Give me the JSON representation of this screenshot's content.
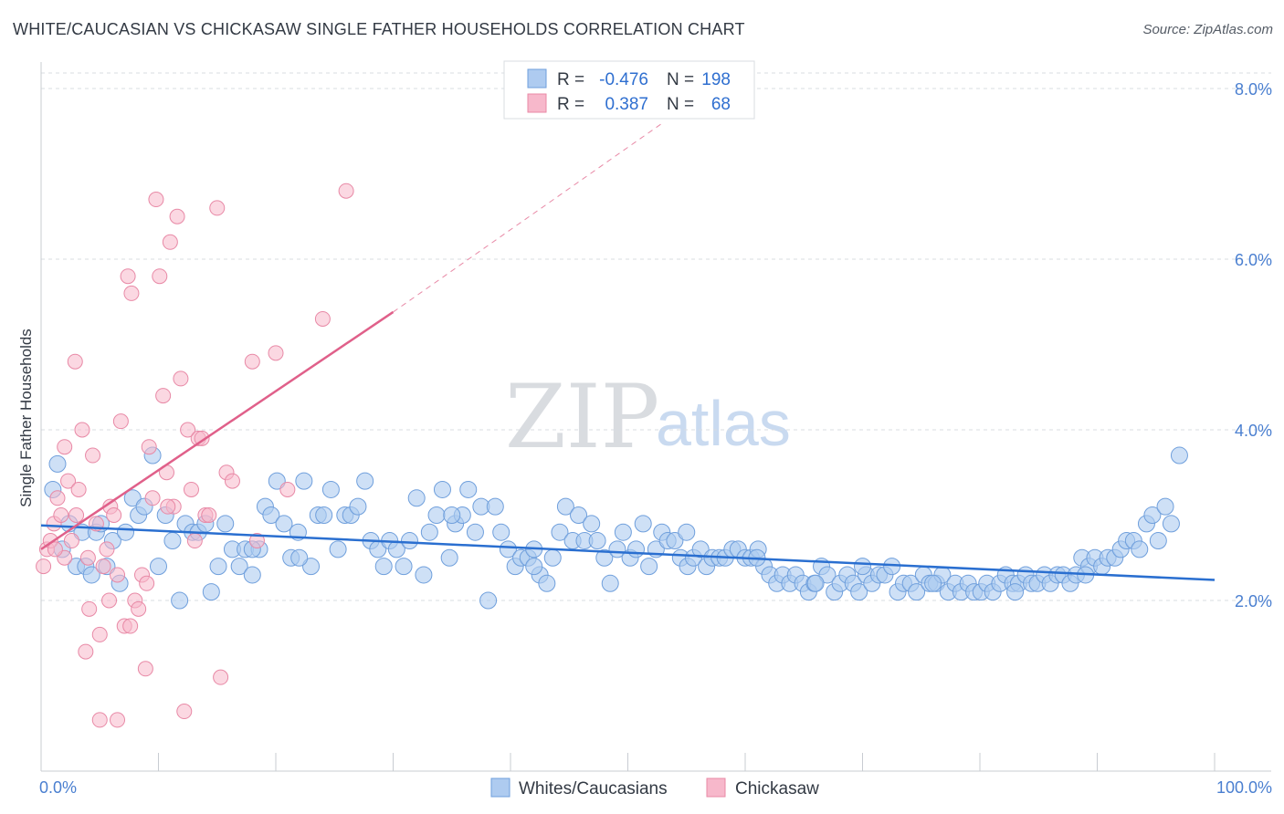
{
  "title": "WHITE/CAUCASIAN VS CHICKASAW SINGLE FATHER HOUSEHOLDS CORRELATION CHART",
  "source": "Source: ZipAtlas.com",
  "watermark": {
    "zip": "ZIP",
    "atlas": "atlas"
  },
  "colors": {
    "white_fill": "#aecbf0",
    "white_stroke": "#6f9fdc",
    "white_line": "#2a6fd0",
    "chick_fill": "#f7b8cb",
    "chick_stroke": "#e889a6",
    "chick_line": "#e0608a",
    "grid": "#d8dce2",
    "axis_text": "#4a7fd0"
  },
  "legend": {
    "rows": [
      {
        "r_label": "R =",
        "r_value": "-0.476",
        "n_label": "N =",
        "n_value": "198"
      },
      {
        "r_label": "R =",
        "r_value": "0.387",
        "n_label": "N =",
        "n_value": "68"
      }
    ]
  },
  "bottom_legend": [
    "Whites/Caucasians",
    "Chickasaw"
  ],
  "chart_data": {
    "type": "scatter",
    "xlabel": "",
    "ylabel": "Single Father Households",
    "xlim": [
      0,
      100
    ],
    "ylim": [
      0,
      8.0
    ],
    "x_tick_labels": [
      "0.0%",
      "100.0%"
    ],
    "y_ticks": [
      2.0,
      4.0,
      6.0,
      8.0
    ],
    "y_tick_labels": [
      "2.0%",
      "4.0%",
      "6.0%",
      "8.0%"
    ],
    "grid": true,
    "series": [
      {
        "name": "Whites/Caucasians",
        "trend": {
          "x0": 0,
          "y0": 2.88,
          "x1": 100,
          "y1": 2.24
        },
        "points": [
          [
            1.0,
            3.3
          ],
          [
            1.4,
            3.6
          ],
          [
            1.8,
            2.6
          ],
          [
            2.4,
            2.9
          ],
          [
            3.0,
            2.4
          ],
          [
            3.5,
            2.8
          ],
          [
            3.8,
            2.4
          ],
          [
            4.3,
            2.3
          ],
          [
            4.7,
            2.8
          ],
          [
            5.1,
            2.9
          ],
          [
            5.6,
            2.4
          ],
          [
            6.1,
            2.7
          ],
          [
            6.7,
            2.2
          ],
          [
            7.2,
            2.8
          ],
          [
            7.8,
            3.2
          ],
          [
            8.3,
            3.0
          ],
          [
            8.8,
            3.1
          ],
          [
            9.5,
            3.7
          ],
          [
            10.0,
            2.4
          ],
          [
            10.6,
            3.0
          ],
          [
            11.2,
            2.7
          ],
          [
            11.8,
            2.0
          ],
          [
            12.3,
            2.9
          ],
          [
            12.9,
            2.8
          ],
          [
            13.4,
            2.8
          ],
          [
            14.0,
            2.9
          ],
          [
            14.5,
            2.1
          ],
          [
            15.1,
            2.4
          ],
          [
            15.7,
            2.9
          ],
          [
            16.3,
            2.6
          ],
          [
            16.9,
            2.4
          ],
          [
            17.4,
            2.6
          ],
          [
            18.0,
            2.3
          ],
          [
            18.6,
            2.6
          ],
          [
            19.1,
            3.1
          ],
          [
            19.6,
            3.0
          ],
          [
            20.1,
            3.4
          ],
          [
            20.7,
            2.9
          ],
          [
            21.3,
            2.5
          ],
          [
            21.9,
            2.8
          ],
          [
            22.4,
            3.4
          ],
          [
            23.0,
            2.4
          ],
          [
            23.6,
            3.0
          ],
          [
            24.1,
            3.0
          ],
          [
            24.7,
            3.3
          ],
          [
            25.3,
            2.6
          ],
          [
            25.9,
            3.0
          ],
          [
            26.4,
            3.0
          ],
          [
            27.0,
            3.1
          ],
          [
            27.6,
            3.4
          ],
          [
            28.1,
            2.7
          ],
          [
            28.7,
            2.6
          ],
          [
            29.2,
            2.4
          ],
          [
            29.7,
            2.7
          ],
          [
            30.3,
            2.6
          ],
          [
            30.9,
            2.4
          ],
          [
            31.4,
            2.7
          ],
          [
            32.0,
            3.2
          ],
          [
            32.6,
            2.3
          ],
          [
            33.1,
            2.8
          ],
          [
            33.7,
            3.0
          ],
          [
            34.2,
            3.3
          ],
          [
            34.8,
            2.5
          ],
          [
            35.3,
            2.9
          ],
          [
            35.9,
            3.0
          ],
          [
            36.4,
            3.3
          ],
          [
            37.0,
            2.8
          ],
          [
            37.5,
            3.1
          ],
          [
            38.1,
            2.0
          ],
          [
            38.7,
            3.1
          ],
          [
            39.2,
            2.8
          ],
          [
            39.8,
            2.6
          ],
          [
            40.4,
            2.4
          ],
          [
            40.9,
            2.5
          ],
          [
            41.5,
            2.5
          ],
          [
            42.0,
            2.6
          ],
          [
            42.5,
            2.3
          ],
          [
            43.1,
            2.2
          ],
          [
            43.6,
            2.5
          ],
          [
            44.2,
            2.8
          ],
          [
            44.7,
            3.1
          ],
          [
            45.3,
            2.7
          ],
          [
            45.8,
            3.0
          ],
          [
            46.3,
            2.7
          ],
          [
            46.9,
            2.9
          ],
          [
            47.4,
            2.7
          ],
          [
            48.0,
            2.5
          ],
          [
            48.5,
            2.2
          ],
          [
            49.1,
            2.6
          ],
          [
            49.6,
            2.8
          ],
          [
            50.2,
            2.5
          ],
          [
            50.7,
            2.6
          ],
          [
            51.3,
            2.9
          ],
          [
            51.8,
            2.4
          ],
          [
            52.4,
            2.6
          ],
          [
            52.9,
            2.8
          ],
          [
            53.4,
            2.7
          ],
          [
            54.0,
            2.7
          ],
          [
            54.5,
            2.5
          ],
          [
            55.1,
            2.4
          ],
          [
            55.6,
            2.5
          ],
          [
            56.2,
            2.6
          ],
          [
            56.7,
            2.4
          ],
          [
            57.2,
            2.5
          ],
          [
            57.8,
            2.5
          ],
          [
            58.3,
            2.5
          ],
          [
            58.9,
            2.6
          ],
          [
            59.4,
            2.6
          ],
          [
            60.0,
            2.5
          ],
          [
            60.5,
            2.5
          ],
          [
            61.1,
            2.6
          ],
          [
            61.6,
            2.4
          ],
          [
            62.1,
            2.3
          ],
          [
            62.7,
            2.2
          ],
          [
            63.2,
            2.3
          ],
          [
            63.8,
            2.2
          ],
          [
            64.3,
            2.3
          ],
          [
            64.9,
            2.2
          ],
          [
            65.4,
            2.1
          ],
          [
            65.9,
            2.2
          ],
          [
            66.5,
            2.4
          ],
          [
            67.0,
            2.3
          ],
          [
            67.6,
            2.1
          ],
          [
            68.1,
            2.2
          ],
          [
            68.7,
            2.3
          ],
          [
            69.2,
            2.2
          ],
          [
            69.7,
            2.1
          ],
          [
            70.3,
            2.3
          ],
          [
            70.8,
            2.2
          ],
          [
            71.4,
            2.3
          ],
          [
            71.9,
            2.3
          ],
          [
            72.5,
            2.4
          ],
          [
            73.0,
            2.1
          ],
          [
            73.5,
            2.2
          ],
          [
            74.1,
            2.2
          ],
          [
            74.6,
            2.1
          ],
          [
            75.2,
            2.3
          ],
          [
            75.7,
            2.2
          ],
          [
            76.3,
            2.2
          ],
          [
            76.8,
            2.3
          ],
          [
            77.3,
            2.1
          ],
          [
            77.9,
            2.2
          ],
          [
            78.4,
            2.1
          ],
          [
            79.0,
            2.2
          ],
          [
            79.5,
            2.1
          ],
          [
            80.1,
            2.1
          ],
          [
            80.6,
            2.2
          ],
          [
            81.1,
            2.1
          ],
          [
            81.7,
            2.2
          ],
          [
            82.2,
            2.3
          ],
          [
            82.8,
            2.2
          ],
          [
            83.3,
            2.2
          ],
          [
            83.9,
            2.3
          ],
          [
            84.4,
            2.2
          ],
          [
            84.9,
            2.2
          ],
          [
            85.5,
            2.3
          ],
          [
            86.0,
            2.2
          ],
          [
            86.6,
            2.3
          ],
          [
            87.1,
            2.3
          ],
          [
            87.7,
            2.2
          ],
          [
            88.2,
            2.3
          ],
          [
            88.7,
            2.5
          ],
          [
            89.3,
            2.4
          ],
          [
            89.8,
            2.5
          ],
          [
            90.4,
            2.4
          ],
          [
            90.9,
            2.5
          ],
          [
            91.5,
            2.5
          ],
          [
            92.0,
            2.6
          ],
          [
            92.5,
            2.7
          ],
          [
            93.1,
            2.7
          ],
          [
            93.6,
            2.6
          ],
          [
            94.2,
            2.9
          ],
          [
            94.7,
            3.0
          ],
          [
            95.2,
            2.7
          ],
          [
            95.8,
            3.1
          ],
          [
            96.3,
            2.9
          ],
          [
            97.0,
            3.7
          ],
          [
            18.0,
            2.6
          ],
          [
            22.0,
            2.5
          ],
          [
            35.0,
            3.0
          ],
          [
            42.0,
            2.4
          ],
          [
            55.0,
            2.8
          ],
          [
            61.0,
            2.5
          ],
          [
            66.0,
            2.2
          ],
          [
            70.0,
            2.4
          ],
          [
            76.0,
            2.2
          ],
          [
            83.0,
            2.1
          ],
          [
            89.0,
            2.3
          ]
        ]
      },
      {
        "name": "Chickasaw",
        "trend": {
          "x0": 0,
          "y0": 2.6,
          "x1": 30,
          "y1": 5.38,
          "dashed_to": {
            "x": 53,
            "y": 7.6
          }
        },
        "points": [
          [
            0.2,
            2.4
          ],
          [
            0.5,
            2.6
          ],
          [
            0.8,
            2.7
          ],
          [
            1.1,
            2.9
          ],
          [
            1.4,
            3.2
          ],
          [
            1.7,
            3.0
          ],
          [
            2.0,
            2.5
          ],
          [
            2.3,
            3.4
          ],
          [
            2.6,
            2.7
          ],
          [
            2.9,
            4.8
          ],
          [
            3.2,
            3.3
          ],
          [
            3.5,
            4.0
          ],
          [
            3.8,
            1.4
          ],
          [
            4.1,
            1.9
          ],
          [
            4.4,
            3.7
          ],
          [
            4.7,
            2.9
          ],
          [
            5.0,
            1.6
          ],
          [
            5.3,
            2.4
          ],
          [
            5.6,
            2.6
          ],
          [
            5.9,
            3.1
          ],
          [
            6.2,
            3.0
          ],
          [
            6.5,
            2.3
          ],
          [
            6.8,
            4.1
          ],
          [
            7.1,
            1.7
          ],
          [
            7.4,
            5.8
          ],
          [
            7.7,
            5.6
          ],
          [
            8.0,
            2.0
          ],
          [
            8.3,
            1.9
          ],
          [
            8.6,
            2.3
          ],
          [
            8.9,
            1.2
          ],
          [
            9.2,
            3.8
          ],
          [
            9.5,
            3.2
          ],
          [
            9.8,
            6.7
          ],
          [
            10.1,
            5.8
          ],
          [
            10.4,
            4.4
          ],
          [
            10.7,
            3.5
          ],
          [
            11.0,
            6.2
          ],
          [
            11.3,
            3.1
          ],
          [
            11.6,
            6.5
          ],
          [
            11.9,
            4.6
          ],
          [
            12.2,
            0.7
          ],
          [
            12.5,
            4.0
          ],
          [
            12.8,
            3.3
          ],
          [
            13.1,
            2.7
          ],
          [
            13.4,
            3.9
          ],
          [
            13.7,
            3.9
          ],
          [
            14.0,
            3.0
          ],
          [
            14.3,
            3.0
          ],
          [
            15.0,
            6.6
          ],
          [
            15.3,
            1.1
          ],
          [
            15.8,
            3.5
          ],
          [
            16.3,
            3.4
          ],
          [
            18.0,
            4.8
          ],
          [
            18.4,
            2.7
          ],
          [
            20.0,
            4.9
          ],
          [
            21.0,
            3.3
          ],
          [
            24.0,
            5.3
          ],
          [
            26.0,
            6.8
          ],
          [
            5.0,
            0.6
          ],
          [
            6.5,
            0.6
          ],
          [
            1.2,
            2.6
          ],
          [
            2.0,
            3.8
          ],
          [
            3.0,
            3.0
          ],
          [
            4.0,
            2.5
          ],
          [
            5.8,
            2.0
          ],
          [
            7.6,
            1.7
          ],
          [
            9.0,
            2.2
          ],
          [
            10.8,
            3.1
          ]
        ]
      }
    ]
  }
}
